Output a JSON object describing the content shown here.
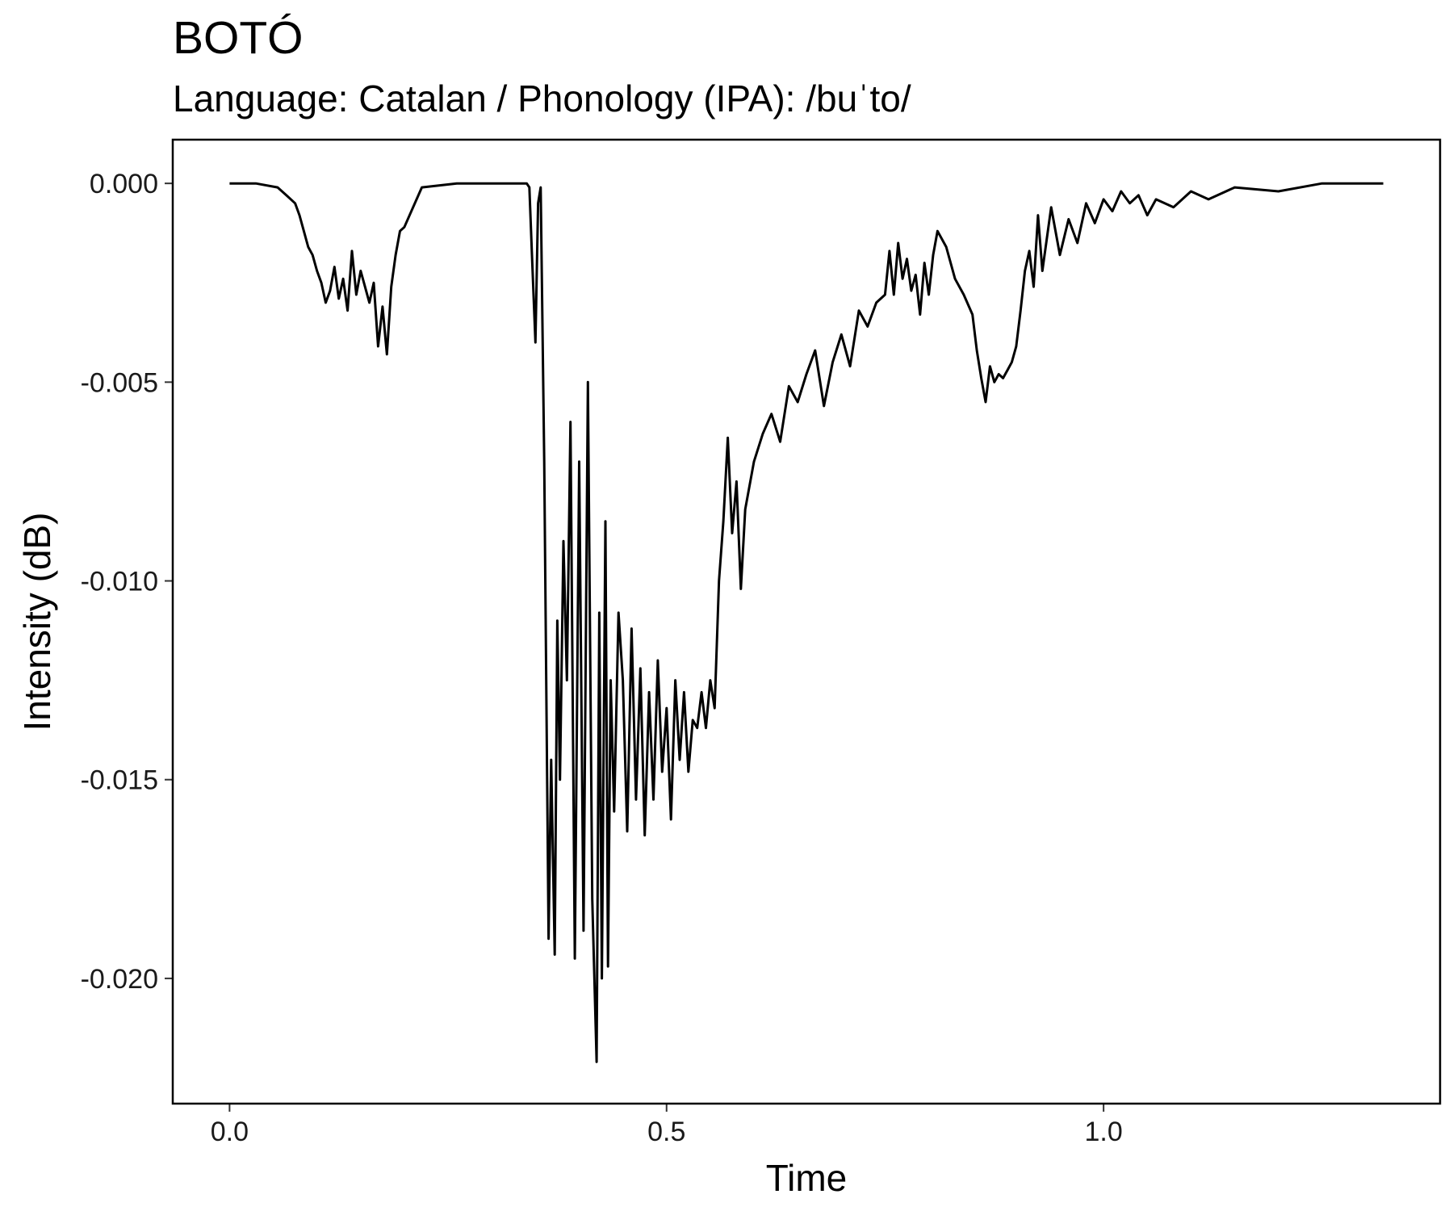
{
  "title": "BOTÓ",
  "subtitle": "Language: Catalan / Phonology (IPA): /buˈto/",
  "chart_data": {
    "type": "line",
    "title": "BOTÓ",
    "subtitle": "Language: Catalan / Phonology (IPA): /buˈto/",
    "xlabel": "Time",
    "ylabel": "Intensity (dB)",
    "xlim": [
      -0.065,
      1.385
    ],
    "ylim": [
      -0.02315,
      0.0011
    ],
    "x_ticks": [
      0.0,
      0.5,
      1.0
    ],
    "x_tick_labels": [
      "0.0",
      "0.5",
      "1.0"
    ],
    "y_ticks": [
      0.0,
      -0.005,
      -0.01,
      -0.015,
      -0.02
    ],
    "y_tick_labels": [
      "0.000",
      "-0.005",
      "-0.010",
      "-0.015",
      "-0.020"
    ],
    "grid": false,
    "line_color": "#000000",
    "series": [
      {
        "x": [
          0.0,
          0.03,
          0.055,
          0.065,
          0.075,
          0.08,
          0.085,
          0.09,
          0.095,
          0.1,
          0.105,
          0.11,
          0.115,
          0.12,
          0.125,
          0.13,
          0.135,
          0.14,
          0.145,
          0.15,
          0.155,
          0.16,
          0.165,
          0.17,
          0.175,
          0.18,
          0.185,
          0.19,
          0.195,
          0.2,
          0.22,
          0.26,
          0.3,
          0.32,
          0.34,
          0.343,
          0.346,
          0.35,
          0.353,
          0.356,
          0.36,
          0.365,
          0.368,
          0.372,
          0.375,
          0.378,
          0.382,
          0.386,
          0.39,
          0.395,
          0.4,
          0.405,
          0.41,
          0.415,
          0.42,
          0.423,
          0.426,
          0.43,
          0.433,
          0.436,
          0.44,
          0.445,
          0.45,
          0.455,
          0.46,
          0.465,
          0.47,
          0.475,
          0.48,
          0.485,
          0.49,
          0.495,
          0.5,
          0.505,
          0.51,
          0.515,
          0.52,
          0.525,
          0.53,
          0.535,
          0.54,
          0.545,
          0.55,
          0.555,
          0.56,
          0.565,
          0.57,
          0.575,
          0.58,
          0.585,
          0.59,
          0.6,
          0.61,
          0.62,
          0.63,
          0.64,
          0.65,
          0.66,
          0.67,
          0.68,
          0.69,
          0.7,
          0.71,
          0.72,
          0.73,
          0.74,
          0.75,
          0.755,
          0.76,
          0.765,
          0.77,
          0.775,
          0.78,
          0.785,
          0.79,
          0.795,
          0.8,
          0.805,
          0.81,
          0.82,
          0.83,
          0.84,
          0.85,
          0.855,
          0.86,
          0.865,
          0.87,
          0.875,
          0.88,
          0.885,
          0.89,
          0.895,
          0.9,
          0.905,
          0.91,
          0.915,
          0.92,
          0.925,
          0.93,
          0.94,
          0.95,
          0.96,
          0.97,
          0.98,
          0.99,
          1.0,
          1.01,
          1.02,
          1.03,
          1.04,
          1.05,
          1.06,
          1.08,
          1.1,
          1.12,
          1.15,
          1.2,
          1.25,
          1.3,
          1.32
        ],
        "y": [
          0.0,
          0.0,
          -0.0001,
          -0.0003,
          -0.0005,
          -0.0008,
          -0.0012,
          -0.0016,
          -0.0018,
          -0.0022,
          -0.0025,
          -0.003,
          -0.0027,
          -0.0021,
          -0.0029,
          -0.0024,
          -0.0032,
          -0.0017,
          -0.0028,
          -0.0022,
          -0.0026,
          -0.003,
          -0.0025,
          -0.0041,
          -0.0031,
          -0.0043,
          -0.0026,
          -0.0018,
          -0.0012,
          -0.0011,
          -0.0001,
          0.0,
          0.0,
          0.0,
          0.0,
          -0.0001,
          -0.0018,
          -0.004,
          -0.0005,
          -0.0001,
          -0.007,
          -0.019,
          -0.0145,
          -0.0194,
          -0.011,
          -0.015,
          -0.009,
          -0.0125,
          -0.006,
          -0.0195,
          -0.007,
          -0.0188,
          -0.005,
          -0.018,
          -0.0221,
          -0.0108,
          -0.02,
          -0.0085,
          -0.0197,
          -0.0125,
          -0.0158,
          -0.0108,
          -0.0125,
          -0.0163,
          -0.0112,
          -0.0155,
          -0.0122,
          -0.0164,
          -0.0128,
          -0.0155,
          -0.012,
          -0.0148,
          -0.0132,
          -0.016,
          -0.0125,
          -0.0145,
          -0.0128,
          -0.0148,
          -0.0135,
          -0.0137,
          -0.0128,
          -0.0137,
          -0.0125,
          -0.0132,
          -0.01,
          -0.0085,
          -0.0064,
          -0.0088,
          -0.0075,
          -0.0102,
          -0.0082,
          -0.007,
          -0.0063,
          -0.0058,
          -0.0065,
          -0.0051,
          -0.0055,
          -0.0048,
          -0.0042,
          -0.0056,
          -0.0045,
          -0.0038,
          -0.0046,
          -0.0032,
          -0.0036,
          -0.003,
          -0.0028,
          -0.0017,
          -0.0028,
          -0.0015,
          -0.0024,
          -0.0019,
          -0.0027,
          -0.0023,
          -0.0033,
          -0.002,
          -0.0028,
          -0.0018,
          -0.0012,
          -0.0016,
          -0.0024,
          -0.0028,
          -0.0033,
          -0.0042,
          -0.0049,
          -0.0055,
          -0.0046,
          -0.005,
          -0.0048,
          -0.0049,
          -0.0047,
          -0.0045,
          -0.0041,
          -0.0032,
          -0.0022,
          -0.0017,
          -0.0026,
          -0.0008,
          -0.0022,
          -0.0006,
          -0.0018,
          -0.0009,
          -0.0015,
          -0.0005,
          -0.001,
          -0.0004,
          -0.0007,
          -0.0002,
          -0.0005,
          -0.0003,
          -0.0008,
          -0.0004,
          -0.0006,
          -0.0002,
          -0.0004,
          -0.0001,
          -0.0002,
          0.0,
          0.0,
          0.0
        ]
      }
    ]
  }
}
